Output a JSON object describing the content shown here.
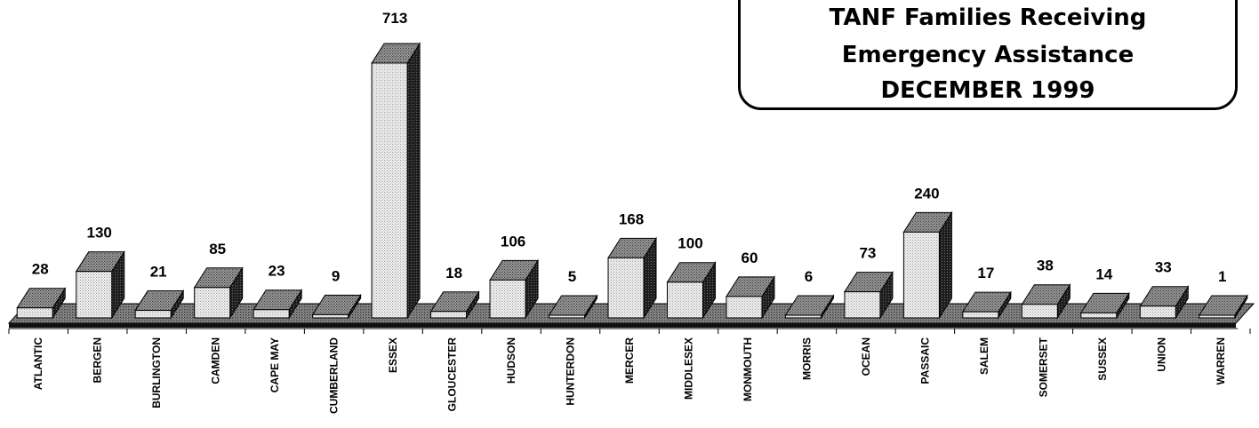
{
  "title": {
    "lines": [
      "TANF Families Receiving",
      "Emergency Assistance",
      "DECEMBER 1999"
    ]
  },
  "colors": {
    "bar_front": "#e2e2e2",
    "bar_side": "#2b2b2b",
    "bar_top": "#8a8a8a",
    "floor": "#777777"
  },
  "chart_data": {
    "type": "bar",
    "title": "TANF Families Receiving Emergency Assistance DECEMBER 1999",
    "xlabel": "",
    "ylabel": "",
    "categories": [
      "ATLANTIC",
      "BERGEN",
      "BURLINGTON",
      "CAMDEN",
      "CAPE MAY",
      "CUMBERLAND",
      "ESSEX",
      "GLOUCESTER",
      "HUDSON",
      "HUNTERDON",
      "MERCER",
      "MIDDLESEX",
      "MONMOUTH",
      "MORRIS",
      "OCEAN",
      "PASSAIC",
      "SALEM",
      "SOMERSET",
      "SUSSEX",
      "UNION",
      "WARREN"
    ],
    "values": [
      28,
      130,
      21,
      85,
      23,
      9,
      713,
      18,
      106,
      5,
      168,
      100,
      60,
      6,
      73,
      240,
      17,
      38,
      14,
      33,
      1
    ],
    "ylim": [
      0,
      713
    ],
    "grid": false,
    "legend": "none",
    "three_d": true
  }
}
